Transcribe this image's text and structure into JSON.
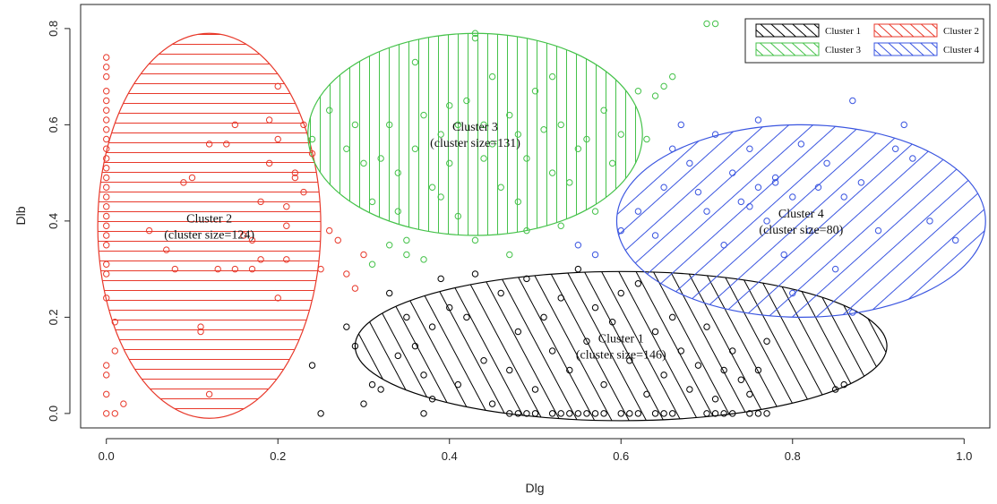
{
  "chart_data": {
    "type": "scatter",
    "xlabel": "Dlg",
    "ylabel": "Dlb",
    "xlim": [
      -0.03,
      1.03
    ],
    "ylim": [
      -0.03,
      0.85
    ],
    "x_ticks": [
      "0.0",
      "0.2",
      "0.4",
      "0.6",
      "0.8",
      "1.0"
    ],
    "y_ticks": [
      "0.0",
      "0.2",
      "0.4",
      "0.6",
      "0.8"
    ],
    "legend_position": "top-right",
    "legend": [
      "Cluster 1",
      "Cluster 2",
      "Cluster 3",
      "Cluster 4"
    ],
    "clusters": [
      {
        "name": "Cluster 1",
        "label_line1": "Cluster 1",
        "label_line2": "(cluster size=146)",
        "size": 146,
        "color": "#000000",
        "hatch": "diagonal-steep",
        "ellipse": {
          "cx": 0.6,
          "cy": 0.14,
          "rx": 0.31,
          "ry": 0.155
        },
        "points": [
          [
            0.24,
            0.1
          ],
          [
            0.25,
            0.0
          ],
          [
            0.28,
            0.18
          ],
          [
            0.29,
            0.14
          ],
          [
            0.3,
            0.02
          ],
          [
            0.31,
            0.06
          ],
          [
            0.32,
            0.05
          ],
          [
            0.33,
            0.25
          ],
          [
            0.34,
            0.12
          ],
          [
            0.35,
            0.2
          ],
          [
            0.36,
            0.14
          ],
          [
            0.37,
            0.08
          ],
          [
            0.37,
            0.0
          ],
          [
            0.38,
            0.18
          ],
          [
            0.38,
            0.03
          ],
          [
            0.39,
            0.28
          ],
          [
            0.4,
            0.22
          ],
          [
            0.41,
            0.06
          ],
          [
            0.42,
            0.2
          ],
          [
            0.43,
            0.29
          ],
          [
            0.44,
            0.11
          ],
          [
            0.45,
            0.02
          ],
          [
            0.46,
            0.25
          ],
          [
            0.47,
            0.09
          ],
          [
            0.48,
            0.17
          ],
          [
            0.49,
            0.28
          ],
          [
            0.5,
            0.05
          ],
          [
            0.51,
            0.2
          ],
          [
            0.52,
            0.13
          ],
          [
            0.53,
            0.24
          ],
          [
            0.54,
            0.09
          ],
          [
            0.55,
            0.3
          ],
          [
            0.56,
            0.15
          ],
          [
            0.57,
            0.22
          ],
          [
            0.58,
            0.06
          ],
          [
            0.59,
            0.19
          ],
          [
            0.6,
            0.25
          ],
          [
            0.61,
            0.11
          ],
          [
            0.62,
            0.27
          ],
          [
            0.63,
            0.04
          ],
          [
            0.64,
            0.17
          ],
          [
            0.65,
            0.08
          ],
          [
            0.66,
            0.2
          ],
          [
            0.67,
            0.13
          ],
          [
            0.68,
            0.05
          ],
          [
            0.69,
            0.1
          ],
          [
            0.7,
            0.18
          ],
          [
            0.71,
            0.03
          ],
          [
            0.72,
            0.09
          ],
          [
            0.73,
            0.13
          ],
          [
            0.74,
            0.07
          ],
          [
            0.75,
            0.04
          ],
          [
            0.76,
            0.09
          ],
          [
            0.77,
            0.15
          ],
          [
            0.85,
            0.05
          ],
          [
            0.86,
            0.06
          ],
          [
            0.47,
            0.0
          ],
          [
            0.48,
            0.0
          ],
          [
            0.49,
            0.0
          ],
          [
            0.5,
            0.0
          ],
          [
            0.52,
            0.0
          ],
          [
            0.53,
            0.0
          ],
          [
            0.54,
            0.0
          ],
          [
            0.55,
            0.0
          ],
          [
            0.56,
            0.0
          ],
          [
            0.57,
            0.0
          ],
          [
            0.58,
            0.0
          ],
          [
            0.6,
            0.0
          ],
          [
            0.61,
            0.0
          ],
          [
            0.62,
            0.0
          ],
          [
            0.64,
            0.0
          ],
          [
            0.65,
            0.0
          ],
          [
            0.66,
            0.0
          ],
          [
            0.7,
            0.0
          ],
          [
            0.71,
            0.0
          ],
          [
            0.72,
            0.0
          ],
          [
            0.73,
            0.0
          ],
          [
            0.75,
            0.0
          ],
          [
            0.76,
            0.0
          ],
          [
            0.77,
            0.0
          ]
        ]
      },
      {
        "name": "Cluster 2",
        "label_line1": "Cluster 2",
        "label_line2": "(cluster size=124)",
        "size": 124,
        "color": "#e8392b",
        "hatch": "horizontal",
        "ellipse": {
          "cx": 0.12,
          "cy": 0.39,
          "rx": 0.13,
          "ry": 0.4
        },
        "points": [
          [
            0.0,
            0.0
          ],
          [
            0.0,
            0.04
          ],
          [
            0.0,
            0.08
          ],
          [
            0.0,
            0.1
          ],
          [
            0.0,
            0.24
          ],
          [
            0.0,
            0.29
          ],
          [
            0.0,
            0.31
          ],
          [
            0.0,
            0.35
          ],
          [
            0.0,
            0.37
          ],
          [
            0.0,
            0.39
          ],
          [
            0.0,
            0.41
          ],
          [
            0.0,
            0.43
          ],
          [
            0.0,
            0.45
          ],
          [
            0.0,
            0.47
          ],
          [
            0.0,
            0.49
          ],
          [
            0.0,
            0.51
          ],
          [
            0.0,
            0.53
          ],
          [
            0.0,
            0.55
          ],
          [
            0.0,
            0.57
          ],
          [
            0.0,
            0.59
          ],
          [
            0.0,
            0.61
          ],
          [
            0.0,
            0.63
          ],
          [
            0.0,
            0.65
          ],
          [
            0.0,
            0.67
          ],
          [
            0.0,
            0.7
          ],
          [
            0.0,
            0.72
          ],
          [
            0.0,
            0.74
          ],
          [
            0.01,
            0.0
          ],
          [
            0.01,
            0.19
          ],
          [
            0.01,
            0.13
          ],
          [
            0.02,
            0.02
          ],
          [
            0.05,
            0.38
          ],
          [
            0.07,
            0.34
          ],
          [
            0.08,
            0.3
          ],
          [
            0.09,
            0.48
          ],
          [
            0.1,
            0.49
          ],
          [
            0.11,
            0.18
          ],
          [
            0.11,
            0.17
          ],
          [
            0.12,
            0.04
          ],
          [
            0.12,
            0.56
          ],
          [
            0.13,
            0.3
          ],
          [
            0.14,
            0.56
          ],
          [
            0.15,
            0.6
          ],
          [
            0.15,
            0.3
          ],
          [
            0.16,
            0.37
          ],
          [
            0.17,
            0.36
          ],
          [
            0.17,
            0.3
          ],
          [
            0.18,
            0.44
          ],
          [
            0.18,
            0.32
          ],
          [
            0.19,
            0.52
          ],
          [
            0.19,
            0.61
          ],
          [
            0.2,
            0.57
          ],
          [
            0.2,
            0.24
          ],
          [
            0.2,
            0.68
          ],
          [
            0.21,
            0.32
          ],
          [
            0.21,
            0.43
          ],
          [
            0.21,
            0.39
          ],
          [
            0.22,
            0.49
          ],
          [
            0.22,
            0.5
          ],
          [
            0.23,
            0.46
          ],
          [
            0.23,
            0.6
          ],
          [
            0.24,
            0.54
          ],
          [
            0.25,
            0.3
          ],
          [
            0.26,
            0.38
          ],
          [
            0.27,
            0.36
          ],
          [
            0.28,
            0.29
          ],
          [
            0.29,
            0.26
          ],
          [
            0.3,
            0.33
          ]
        ]
      },
      {
        "name": "Cluster 3",
        "label_line1": "Cluster 3",
        "label_line2": "(cluster size=131)",
        "size": 131,
        "color": "#45c24a",
        "hatch": "vertical",
        "ellipse": {
          "cx": 0.43,
          "cy": 0.58,
          "rx": 0.195,
          "ry": 0.21
        },
        "points": [
          [
            0.24,
            0.57
          ],
          [
            0.26,
            0.63
          ],
          [
            0.28,
            0.55
          ],
          [
            0.29,
            0.6
          ],
          [
            0.3,
            0.52
          ],
          [
            0.31,
            0.44
          ],
          [
            0.32,
            0.53
          ],
          [
            0.33,
            0.6
          ],
          [
            0.34,
            0.5
          ],
          [
            0.35,
            0.36
          ],
          [
            0.36,
            0.55
          ],
          [
            0.37,
            0.62
          ],
          [
            0.38,
            0.47
          ],
          [
            0.39,
            0.58
          ],
          [
            0.4,
            0.52
          ],
          [
            0.41,
            0.41
          ],
          [
            0.42,
            0.65
          ],
          [
            0.43,
            0.36
          ],
          [
            0.44,
            0.6
          ],
          [
            0.45,
            0.56
          ],
          [
            0.46,
            0.47
          ],
          [
            0.47,
            0.62
          ],
          [
            0.48,
            0.44
          ],
          [
            0.49,
            0.53
          ],
          [
            0.5,
            0.67
          ],
          [
            0.51,
            0.59
          ],
          [
            0.52,
            0.5
          ],
          [
            0.53,
            0.6
          ],
          [
            0.54,
            0.48
          ],
          [
            0.55,
            0.55
          ],
          [
            0.56,
            0.57
          ],
          [
            0.57,
            0.42
          ],
          [
            0.58,
            0.63
          ],
          [
            0.59,
            0.52
          ],
          [
            0.6,
            0.58
          ],
          [
            0.43,
            0.78
          ],
          [
            0.43,
            0.79
          ],
          [
            0.39,
            0.45
          ],
          [
            0.37,
            0.32
          ],
          [
            0.47,
            0.33
          ],
          [
            0.49,
            0.38
          ],
          [
            0.53,
            0.39
          ],
          [
            0.36,
            0.73
          ],
          [
            0.34,
            0.42
          ],
          [
            0.4,
            0.64
          ],
          [
            0.45,
            0.7
          ],
          [
            0.52,
            0.7
          ],
          [
            0.41,
            0.6
          ],
          [
            0.44,
            0.53
          ],
          [
            0.48,
            0.58
          ],
          [
            0.62,
            0.67
          ],
          [
            0.63,
            0.57
          ],
          [
            0.64,
            0.66
          ],
          [
            0.65,
            0.68
          ],
          [
            0.66,
            0.7
          ],
          [
            0.7,
            0.81
          ],
          [
            0.71,
            0.81
          ],
          [
            0.31,
            0.31
          ],
          [
            0.33,
            0.35
          ],
          [
            0.35,
            0.33
          ]
        ]
      },
      {
        "name": "Cluster 4",
        "label_line1": "Cluster 4",
        "label_line2": "(cluster size=80)",
        "size": 80,
        "color": "#3a55e0",
        "hatch": "diagonal-down",
        "ellipse": {
          "cx": 0.81,
          "cy": 0.4,
          "rx": 0.215,
          "ry": 0.2
        },
        "points": [
          [
            0.55,
            0.35
          ],
          [
            0.57,
            0.33
          ],
          [
            0.6,
            0.38
          ],
          [
            0.62,
            0.42
          ],
          [
            0.64,
            0.37
          ],
          [
            0.65,
            0.47
          ],
          [
            0.66,
            0.55
          ],
          [
            0.67,
            0.6
          ],
          [
            0.68,
            0.52
          ],
          [
            0.69,
            0.46
          ],
          [
            0.7,
            0.42
          ],
          [
            0.71,
            0.58
          ],
          [
            0.72,
            0.35
          ],
          [
            0.73,
            0.5
          ],
          [
            0.74,
            0.44
          ],
          [
            0.75,
            0.55
          ],
          [
            0.76,
            0.61
          ],
          [
            0.77,
            0.4
          ],
          [
            0.78,
            0.48
          ],
          [
            0.79,
            0.33
          ],
          [
            0.8,
            0.45
          ],
          [
            0.81,
            0.56
          ],
          [
            0.82,
            0.38
          ],
          [
            0.83,
            0.47
          ],
          [
            0.84,
            0.52
          ],
          [
            0.85,
            0.3
          ],
          [
            0.86,
            0.45
          ],
          [
            0.87,
            0.65
          ],
          [
            0.88,
            0.48
          ],
          [
            0.9,
            0.38
          ],
          [
            0.92,
            0.55
          ],
          [
            0.93,
            0.6
          ],
          [
            0.94,
            0.53
          ],
          [
            0.96,
            0.4
          ],
          [
            0.99,
            0.36
          ],
          [
            0.87,
            0.21
          ],
          [
            0.8,
            0.25
          ],
          [
            0.78,
            0.49
          ],
          [
            0.76,
            0.47
          ],
          [
            0.75,
            0.43
          ]
        ]
      }
    ]
  }
}
